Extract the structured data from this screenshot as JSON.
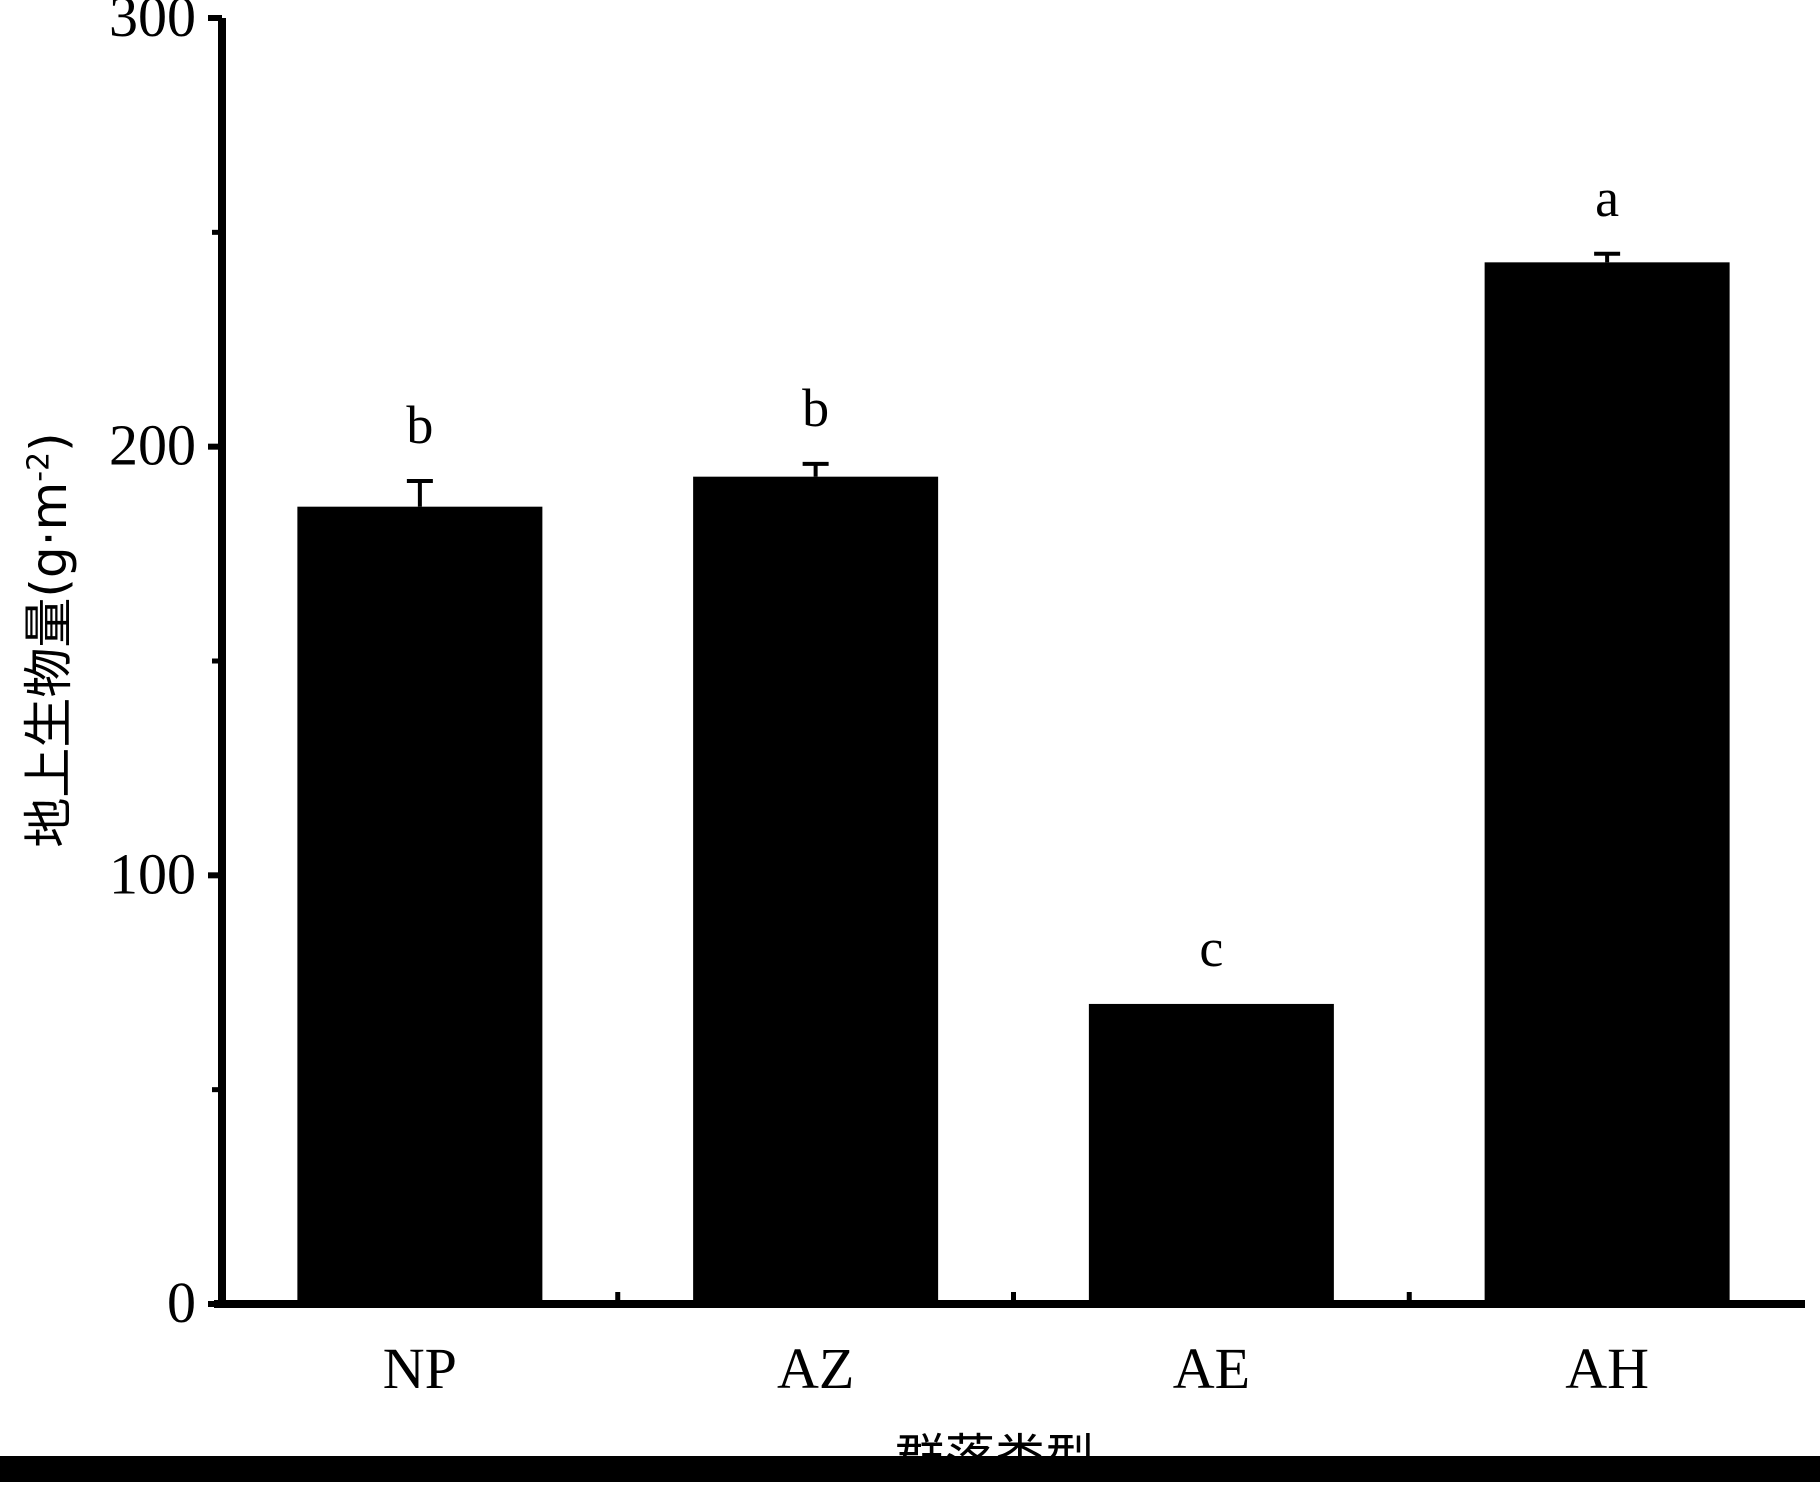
{
  "chart_data": {
    "type": "bar",
    "categories": [
      "NP",
      "AZ",
      "AE",
      "AH"
    ],
    "values": [
      186,
      193,
      70,
      243
    ],
    "errors": [
      6,
      3,
      0,
      2
    ],
    "significance_letters": [
      "b",
      "b",
      "c",
      "a"
    ],
    "ylabel_text": "地上生物量",
    "ylabel_unit_base": "(g·m",
    "ylabel_unit_exp": "-2",
    "ylabel_unit_close": ")",
    "xlabel": "群落类型",
    "ylim": [
      0,
      300
    ],
    "yticks": [
      0,
      100,
      200,
      300
    ],
    "minor_ticks": [
      50,
      150,
      250
    ],
    "grid": false,
    "bar_color": "#000000"
  }
}
